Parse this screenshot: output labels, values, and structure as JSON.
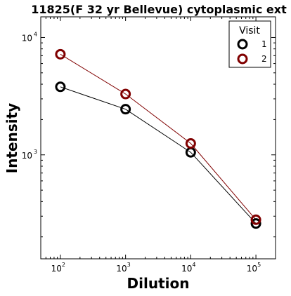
{
  "chart_data": {
    "type": "line",
    "title": "11825(F 32 yr Bellevue) cytoplasmic ext",
    "xlabel": "Dilution",
    "ylabel": "Intensity",
    "x_scale": "log",
    "y_scale": "log",
    "xlim": [
      50,
      200000
    ],
    "ylim": [
      130,
      15000
    ],
    "x_ticks": [
      {
        "base": "10",
        "exp": "2",
        "value": 100
      },
      {
        "base": "10",
        "exp": "3",
        "value": 1000
      },
      {
        "base": "10",
        "exp": "4",
        "value": 10000
      },
      {
        "base": "10",
        "exp": "5",
        "value": 100000
      }
    ],
    "y_ticks": [
      {
        "base": "10",
        "exp": "3",
        "value": 1000
      },
      {
        "base": "10",
        "exp": "4",
        "value": 10000
      }
    ],
    "grid": false,
    "legend": {
      "title": "Visit",
      "placement": "top-right"
    },
    "x": [
      100,
      1000,
      10000,
      100000
    ],
    "series": [
      {
        "name": "1",
        "color": "#000000",
        "values": [
          3800,
          2450,
          1050,
          260
        ]
      },
      {
        "name": "2",
        "color": "#800000",
        "values": [
          7200,
          3300,
          1250,
          280
        ]
      }
    ]
  }
}
